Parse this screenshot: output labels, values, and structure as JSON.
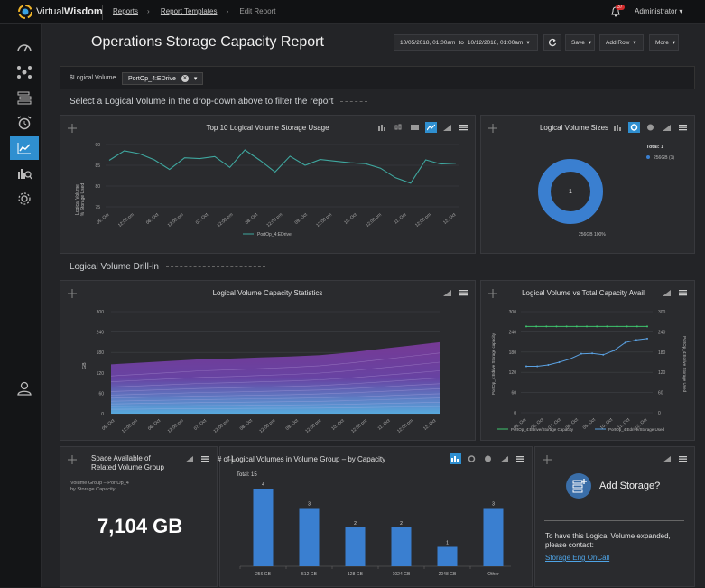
{
  "brand": {
    "name_light": "Virtual",
    "name_bold": "Wisdom"
  },
  "breadcrumb": [
    "Reports",
    "Report Templates",
    "Edit Report"
  ],
  "notifications": {
    "count": "37"
  },
  "user": {
    "name": "Administrator"
  },
  "page": {
    "title": "Operations Storage Capacity Report"
  },
  "toolbar": {
    "date_from": "10/05/2018, 01:00am",
    "date_to_label": "to",
    "date_to": "10/12/2018, 01:00am",
    "save_label": "Save",
    "add_row_label": "Add Row",
    "more_label": "More"
  },
  "filter": {
    "label": "$Logical Volume",
    "value": "PortOp_4:EDrive"
  },
  "sections": {
    "hint": "Select a Logical Volume in the drop-down above to filter the report",
    "drill": "Logical Volume Drill-in"
  },
  "panels": {
    "top10": {
      "title": "Top 10 Logical Volume Storage Usage"
    },
    "sizes": {
      "title": "Logical Volume Sizes"
    },
    "capstats": {
      "title": "Logical Volume Capacity Statistics"
    },
    "vstotal": {
      "title": "Logical Volume vs Total Capacity Avail"
    },
    "space": {
      "title_line1": "Space Available of",
      "title_line2": "Related Volume Group",
      "sub_line1": "Volume Group – PortOp_4",
      "sub_line2": "by Storage Capacity",
      "value": "7,104 GB"
    },
    "count": {
      "title": "# of Logical Volumes in Volume Group – by Capacity"
    },
    "add": {
      "title": "Add Storage?",
      "contact_line1": "To have this Logical Volume expanded,",
      "contact_line2": "please contact:",
      "link": "Storage Eng OnCall"
    }
  },
  "chart_data": [
    {
      "type": "line",
      "title": "Top 10 Logical Volume Storage Usage",
      "ylabel": "Logical Volume % Storage Used",
      "ylim": [
        75,
        90
      ],
      "yticks": [
        "90",
        "85",
        "80",
        "75"
      ],
      "xticks": [
        "05. Oct",
        "12:00 pm",
        "06. Oct",
        "12:00 pm",
        "07. Oct",
        "12:00 pm",
        "08. Oct",
        "12:00 pm",
        "09. Oct",
        "12:00 pm",
        "10. Oct",
        "12:00 pm",
        "11. Oct",
        "12:00 pm",
        "12. Oct"
      ],
      "series": [
        {
          "name": "PortOp_4:EDrive",
          "values": [
            86.2,
            88.5,
            87.8,
            86.3,
            84.0,
            86.8,
            86.6,
            87.1,
            84.5,
            88.7,
            86.2,
            83.4,
            87.2,
            85.0,
            86.4,
            86.0,
            85.6,
            85.4,
            84.3,
            82.0,
            80.7,
            86.3,
            85.3,
            85.5
          ]
        }
      ],
      "grid": true,
      "legend": "bottom"
    },
    {
      "type": "pie",
      "title": "Logical Volume Sizes",
      "total_label": "Total: 1",
      "legend_entry": "256GB (1)",
      "center_label": "1",
      "slice_label": "256GB 100%",
      "categories": [
        "256GB"
      ],
      "values": [
        1
      ]
    },
    {
      "type": "area",
      "title": "Logical Volume Capacity Statistics",
      "ylabel": "GB",
      "ylim": [
        0,
        300
      ],
      "yticks": [
        "300",
        "240",
        "180",
        "120",
        "60",
        "0"
      ],
      "xticks": [
        "05. Oct",
        "12:00 pm",
        "06. Oct",
        "12:00 pm",
        "07. Oct",
        "12:00 pm",
        "08. Oct",
        "12:00 pm",
        "09. Oct",
        "12:00 pm",
        "10. Oct",
        "12:00 pm",
        "11. Oct",
        "12:00 pm",
        "12. Oct"
      ],
      "top_series": [
        145,
        150,
        155,
        160,
        162,
        165,
        168,
        172,
        180,
        190,
        200,
        210
      ],
      "grid": true
    },
    {
      "type": "line",
      "title": "Logical Volume vs Total Capacity Avail",
      "ylabel_left": "PortOp_4:Edrive Storage capacity",
      "ylabel_right": "PortOp_4:Edrive Storage Used",
      "ylim": [
        0,
        300
      ],
      "yticks": [
        "300",
        "240",
        "180",
        "120",
        "60",
        "0"
      ],
      "xticks": [
        "05. Oct",
        "06. Oct",
        "07. Oct",
        "08. Oct",
        "09. Oct",
        "10. Oct",
        "11. Oct",
        "12. Oct"
      ],
      "series": [
        {
          "name": "PortOp_4:Edrive/Storage Capacity",
          "color": "#3ec46d",
          "values": [
            256,
            256,
            256,
            256,
            256,
            256,
            256,
            256,
            256,
            256,
            256,
            256,
            256
          ]
        },
        {
          "name": "PortOp_4:Edrive/Storage Used",
          "color": "#5aa0e0",
          "values": [
            138,
            138,
            142,
            150,
            160,
            175,
            176,
            172,
            185,
            208,
            216,
            220
          ]
        }
      ],
      "legend": "bottom"
    },
    {
      "type": "bar",
      "title": "# of Logical Volumes in Volume Group – by Capacity",
      "total_label": "Total: 15",
      "categories": [
        "256 GB",
        "512 GB",
        "128 GB",
        "1024 GB",
        "2048 GB",
        "Other"
      ],
      "values": [
        4,
        3,
        2,
        2,
        1,
        3
      ]
    }
  ]
}
